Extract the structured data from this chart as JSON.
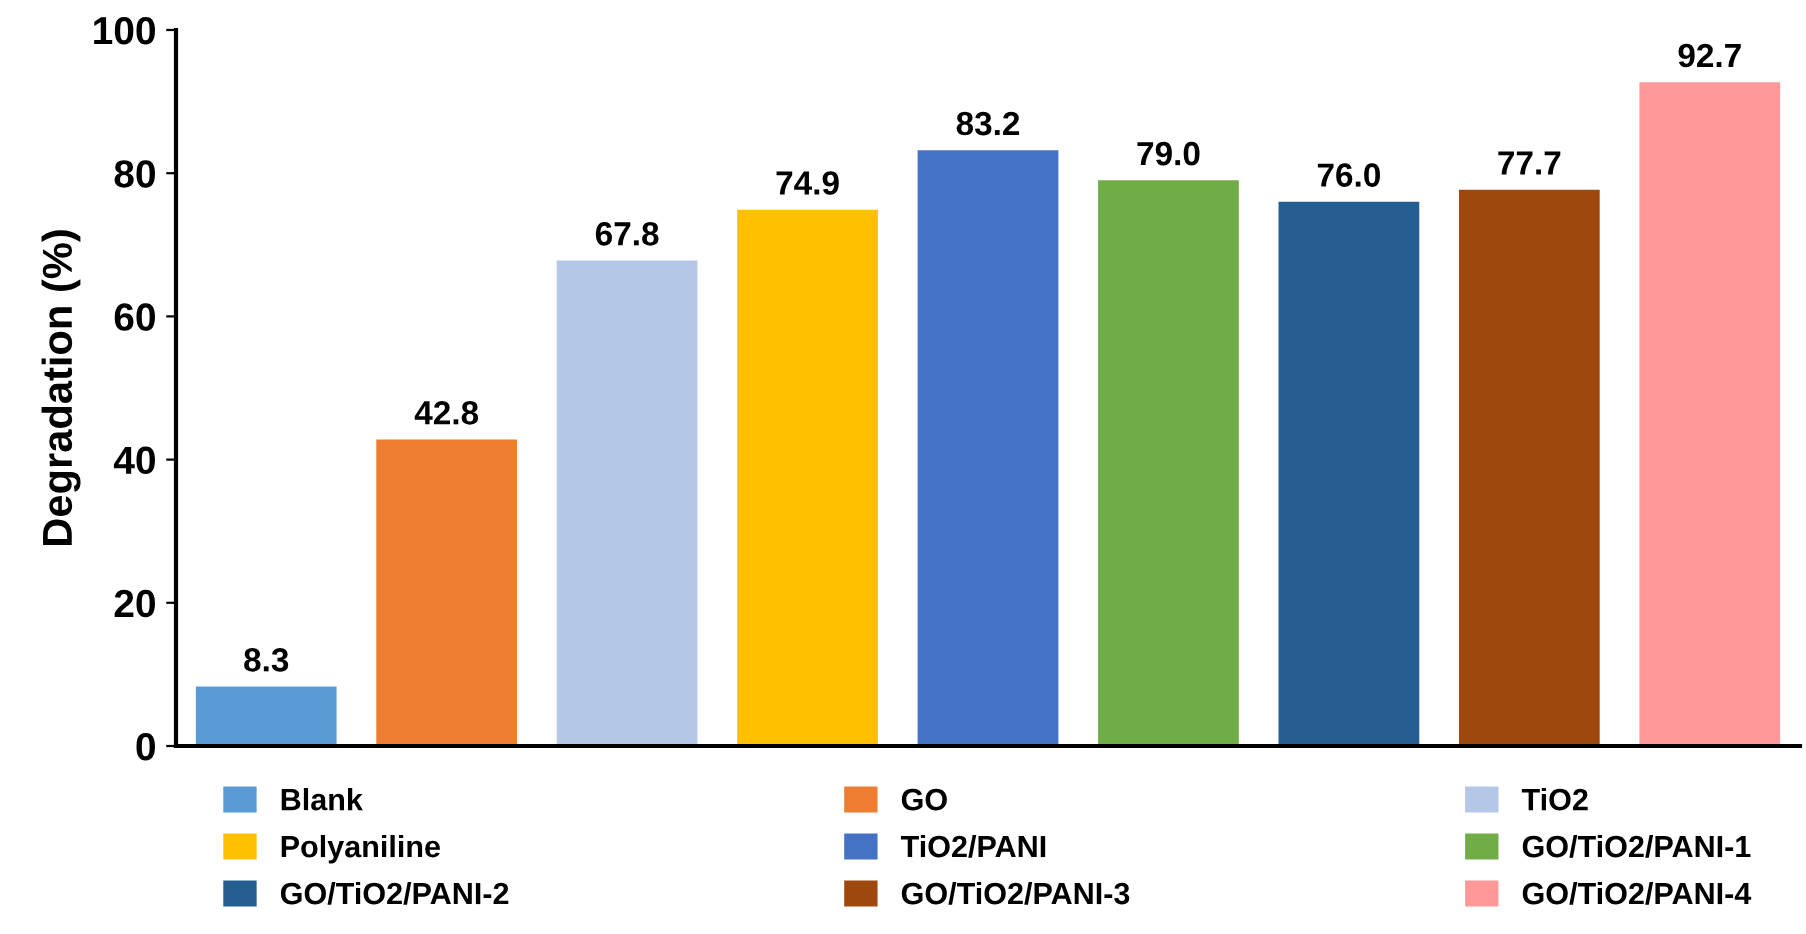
{
  "chart_data": {
    "type": "bar",
    "ylabel": "Degradation (%)",
    "categories": [
      null,
      null,
      null,
      null,
      null,
      null,
      null,
      null,
      null
    ],
    "series": [
      {
        "name": "Blank",
        "color": "#5b9bd5",
        "values": [
          8.3,
          null,
          null,
          null,
          null,
          null,
          null,
          null,
          null
        ]
      },
      {
        "name": "GO",
        "color": "#ed7d31",
        "values": [
          null,
          42.8,
          null,
          null,
          null,
          null,
          null,
          null,
          null
        ]
      },
      {
        "name": "TiO2",
        "color": "#b4c7e7",
        "values": [
          null,
          null,
          67.8,
          null,
          null,
          null,
          null,
          null,
          null
        ]
      },
      {
        "name": "Polyaniline",
        "color": "#ffc000",
        "values": [
          null,
          null,
          null,
          74.9,
          null,
          null,
          null,
          null,
          null
        ]
      },
      {
        "name": "TiO2/PANI",
        "color": "#4472c4",
        "values": [
          null,
          null,
          null,
          null,
          83.2,
          null,
          null,
          null,
          null
        ]
      },
      {
        "name": "GO/TiO2/PANI-1",
        "color": "#70ad47",
        "values": [
          null,
          null,
          null,
          null,
          null,
          79.0,
          null,
          null,
          null
        ],
        "value_labels": [
          null,
          null,
          null,
          null,
          null,
          "79.0",
          null,
          null,
          null
        ]
      },
      {
        "name": "GO/TiO2/PANI-2",
        "color": "#255e91",
        "values": [
          null,
          null,
          null,
          null,
          null,
          null,
          76.0,
          null,
          null
        ],
        "value_labels": [
          null,
          null,
          null,
          null,
          null,
          null,
          "76.0",
          null,
          null
        ]
      },
      {
        "name": "GO/TiO2/PANI-3",
        "color": "#9e480e",
        "values": [
          null,
          null,
          null,
          null,
          null,
          null,
          null,
          77.7,
          null
        ]
      },
      {
        "name": "GO/TiO2/PANI-4",
        "color": "#ff9999",
        "values": [
          null,
          null,
          null,
          null,
          null,
          null,
          null,
          null,
          92.7
        ]
      }
    ],
    "ylim": [
      0,
      100
    ],
    "yticks": [
      0,
      20,
      40,
      60,
      80,
      100
    ],
    "grid": false,
    "legend": "bottom",
    "data_labels": true
  }
}
